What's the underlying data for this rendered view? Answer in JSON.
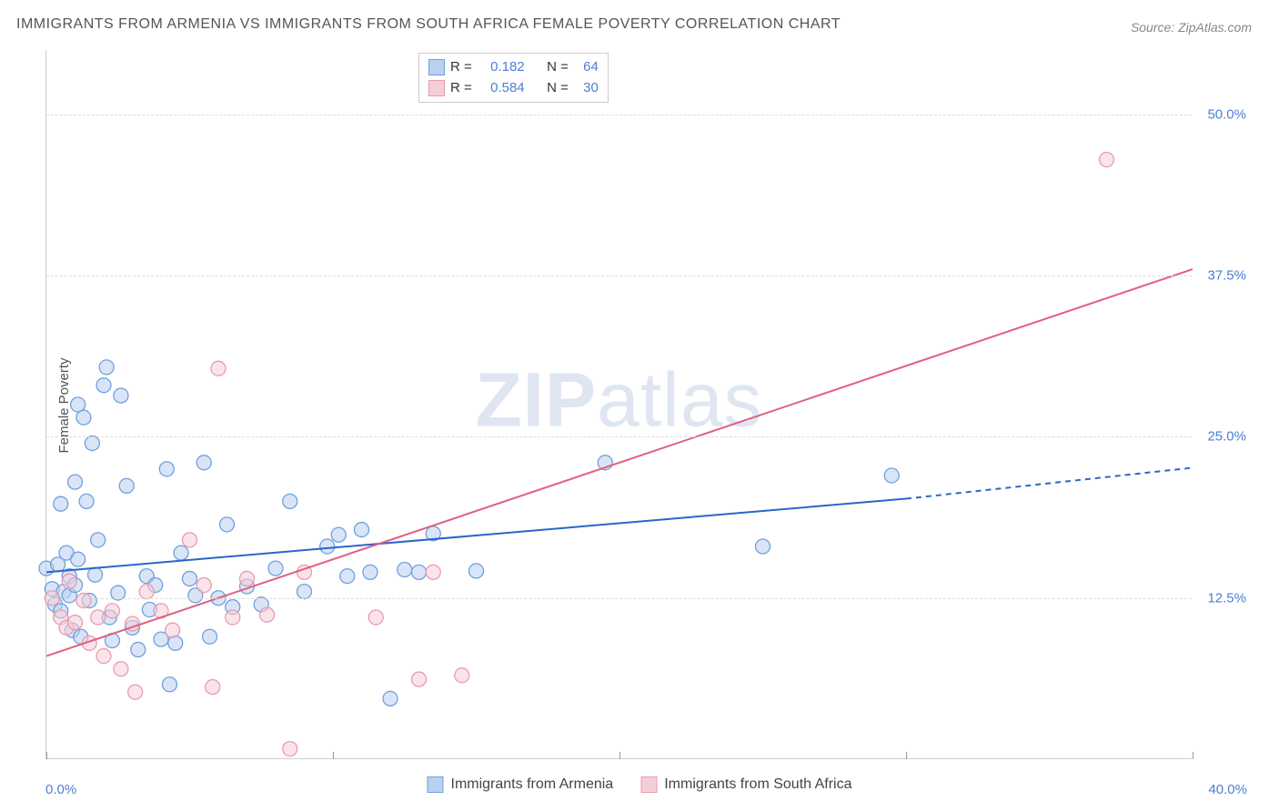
{
  "title": "IMMIGRANTS FROM ARMENIA VS IMMIGRANTS FROM SOUTH AFRICA FEMALE POVERTY CORRELATION CHART",
  "source": "Source: ZipAtlas.com",
  "ylabel": "Female Poverty",
  "watermark": {
    "bold": "ZIP",
    "rest": "atlas"
  },
  "chart": {
    "type": "scatter-with-regression",
    "xlim": [
      0,
      40
    ],
    "ylim": [
      0,
      55
    ],
    "ytick_labels": [
      {
        "y": 12.5,
        "label": "12.5%"
      },
      {
        "y": 25.0,
        "label": "25.0%"
      },
      {
        "y": 37.5,
        "label": "37.5%"
      },
      {
        "y": 50.0,
        "label": "50.0%"
      }
    ],
    "xtick_positions": [
      0,
      10,
      20,
      30,
      40
    ],
    "xlabel_min": "0.0%",
    "xlabel_max": "40.0%",
    "background_color": "#ffffff",
    "grid_color": "#dddddd",
    "axis_color": "#cccccc",
    "tick_label_color": "#4a7fd8",
    "marker_radius": 8,
    "marker_opacity": 0.55,
    "series": [
      {
        "name": "Immigrants from Armenia",
        "color_fill": "#b9d0ef",
        "color_stroke": "#6fa0e0",
        "R": "0.182",
        "N": "64",
        "regression": {
          "x1": 0,
          "y1": 14.5,
          "x2": 30,
          "y2": 20.2,
          "solid_until_x": 30,
          "dashed_to_x": 40,
          "y_at_dashed_end": 22.6,
          "stroke": "#2a66c9",
          "width": 2
        },
        "points": [
          [
            0,
            14.8
          ],
          [
            0.2,
            13.2
          ],
          [
            0.3,
            12.0
          ],
          [
            0.4,
            15.1
          ],
          [
            0.5,
            11.5
          ],
          [
            0.5,
            19.8
          ],
          [
            0.6,
            13.0
          ],
          [
            0.7,
            16.0
          ],
          [
            0.8,
            12.7
          ],
          [
            0.8,
            14.2
          ],
          [
            0.9,
            10.0
          ],
          [
            1.0,
            13.5
          ],
          [
            1.0,
            21.5
          ],
          [
            1.1,
            15.5
          ],
          [
            1.2,
            9.5
          ],
          [
            1.4,
            20.0
          ],
          [
            1.3,
            26.5
          ],
          [
            1.5,
            12.3
          ],
          [
            1.6,
            24.5
          ],
          [
            1.7,
            14.3
          ],
          [
            1.8,
            17.0
          ],
          [
            2.0,
            29.0
          ],
          [
            2.2,
            11.0
          ],
          [
            2.3,
            9.2
          ],
          [
            2.5,
            12.9
          ],
          [
            2.6,
            28.2
          ],
          [
            2.8,
            21.2
          ],
          [
            3.0,
            10.2
          ],
          [
            3.2,
            8.5
          ],
          [
            3.5,
            14.2
          ],
          [
            3.6,
            11.6
          ],
          [
            3.8,
            13.5
          ],
          [
            4.0,
            9.3
          ],
          [
            4.2,
            22.5
          ],
          [
            4.3,
            5.8
          ],
          [
            4.5,
            9.0
          ],
          [
            4.7,
            16.0
          ],
          [
            5.0,
            14.0
          ],
          [
            5.2,
            12.7
          ],
          [
            5.5,
            23.0
          ],
          [
            5.7,
            9.5
          ],
          [
            6.0,
            12.5
          ],
          [
            6.3,
            18.2
          ],
          [
            6.5,
            11.8
          ],
          [
            7.0,
            13.4
          ],
          [
            7.5,
            12.0
          ],
          [
            8.0,
            14.8
          ],
          [
            8.5,
            20.0
          ],
          [
            9.0,
            13.0
          ],
          [
            9.8,
            16.5
          ],
          [
            10.2,
            17.4
          ],
          [
            10.5,
            14.2
          ],
          [
            11.0,
            17.8
          ],
          [
            11.3,
            14.5
          ],
          [
            12.0,
            4.7
          ],
          [
            12.5,
            14.7
          ],
          [
            13.0,
            14.5
          ],
          [
            13.5,
            17.5
          ],
          [
            15.0,
            14.6
          ],
          [
            19.5,
            23.0
          ],
          [
            25.0,
            16.5
          ],
          [
            29.5,
            22.0
          ],
          [
            2.1,
            30.4
          ],
          [
            1.1,
            27.5
          ]
        ]
      },
      {
        "name": "Immigrants from South Africa",
        "color_fill": "#f5cdd7",
        "color_stroke": "#e89bb0",
        "R": "0.584",
        "N": "30",
        "regression": {
          "x1": 0,
          "y1": 8.0,
          "x2": 40,
          "y2": 38.0,
          "solid_until_x": 40,
          "dashed_to_x": 40,
          "y_at_dashed_end": 38.0,
          "stroke": "#e0607f",
          "width": 2
        },
        "points": [
          [
            0.2,
            12.5
          ],
          [
            0.5,
            11.0
          ],
          [
            0.7,
            10.2
          ],
          [
            0.8,
            13.8
          ],
          [
            1.0,
            10.6
          ],
          [
            1.3,
            12.3
          ],
          [
            1.5,
            9.0
          ],
          [
            1.8,
            11.0
          ],
          [
            2.0,
            8.0
          ],
          [
            2.3,
            11.5
          ],
          [
            2.6,
            7.0
          ],
          [
            3.0,
            10.5
          ],
          [
            3.1,
            5.2
          ],
          [
            3.5,
            13.0
          ],
          [
            4.0,
            11.5
          ],
          [
            4.4,
            10.0
          ],
          [
            5.0,
            17.0
          ],
          [
            5.5,
            13.5
          ],
          [
            5.8,
            5.6
          ],
          [
            6.0,
            30.3
          ],
          [
            6.5,
            11.0
          ],
          [
            7.0,
            14.0
          ],
          [
            7.7,
            11.2
          ],
          [
            8.5,
            0.8
          ],
          [
            9.0,
            14.5
          ],
          [
            11.5,
            11.0
          ],
          [
            13.0,
            6.2
          ],
          [
            13.5,
            14.5
          ],
          [
            14.5,
            6.5
          ],
          [
            37.0,
            46.5
          ]
        ]
      }
    ]
  },
  "legend_box": {
    "rows": [
      {
        "swatch_fill": "#b9d0ef",
        "swatch_stroke": "#6fa0e0",
        "r_label": "R =",
        "r_val": "0.182",
        "n_label": "N =",
        "n_val": "64",
        "val_class": ""
      },
      {
        "swatch_fill": "#f5cdd7",
        "swatch_stroke": "#e89bb0",
        "r_label": "R =",
        "r_val": "0.584",
        "n_label": "N =",
        "n_val": "30",
        "val_class": ""
      }
    ]
  },
  "bottom_legend": [
    {
      "swatch_fill": "#b9d0ef",
      "swatch_stroke": "#6fa0e0",
      "label": "Immigrants from Armenia"
    },
    {
      "swatch_fill": "#f5cdd7",
      "swatch_stroke": "#e89bb0",
      "label": "Immigrants from South Africa"
    }
  ]
}
